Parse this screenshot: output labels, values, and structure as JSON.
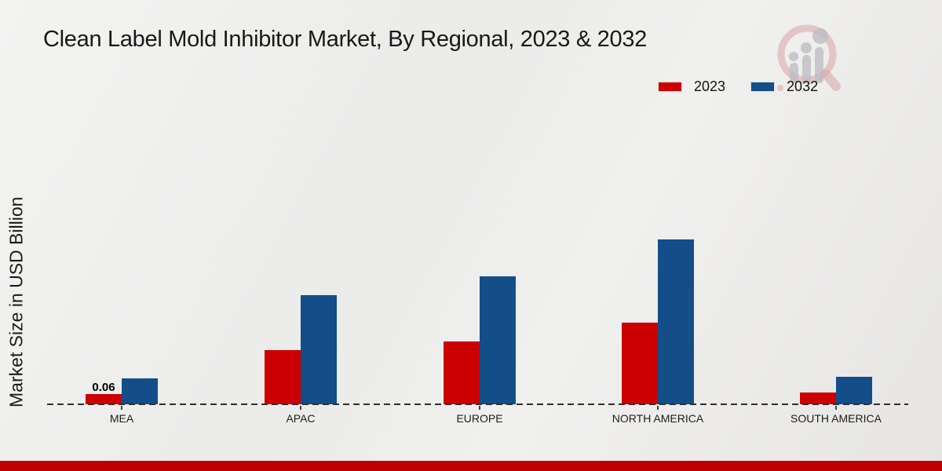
{
  "page": {
    "bottom_strip_color": "#bf0000"
  },
  "header": {
    "title": "Clean Label Mold Inhibitor Market, By Regional, 2023 & 2032"
  },
  "axes": {
    "y_label": "Market Size in USD Billion"
  },
  "legend": {
    "items": [
      {
        "label": "2023",
        "color": "#cc0000"
      },
      {
        "label": "2032",
        "color": "#134e88"
      }
    ]
  },
  "watermark": {
    "icon": "magnifier-barchart-logo"
  },
  "chart_data": {
    "type": "bar",
    "title": "Clean Label Mold Inhibitor Market, By Regional, 2023 & 2032",
    "xlabel": "",
    "ylabel": "Market Size in USD Billion",
    "categories": [
      "MEA",
      "APAC",
      "EUROPE",
      "NORTH AMERICA",
      "SOUTH AMERICA"
    ],
    "series": [
      {
        "name": "2023",
        "color": "#cc0000",
        "values": [
          0.06,
          0.32,
          0.37,
          0.48,
          0.07
        ]
      },
      {
        "name": "2032",
        "color": "#134e88",
        "values": [
          0.15,
          0.64,
          0.75,
          0.97,
          0.16
        ]
      }
    ],
    "data_labels": [
      {
        "series": "2023",
        "category": "MEA",
        "text": "0.06"
      }
    ],
    "ylim": [
      0,
      1.1
    ],
    "grid": false,
    "baseline_style": "dashed",
    "legend_position": "top-right"
  }
}
